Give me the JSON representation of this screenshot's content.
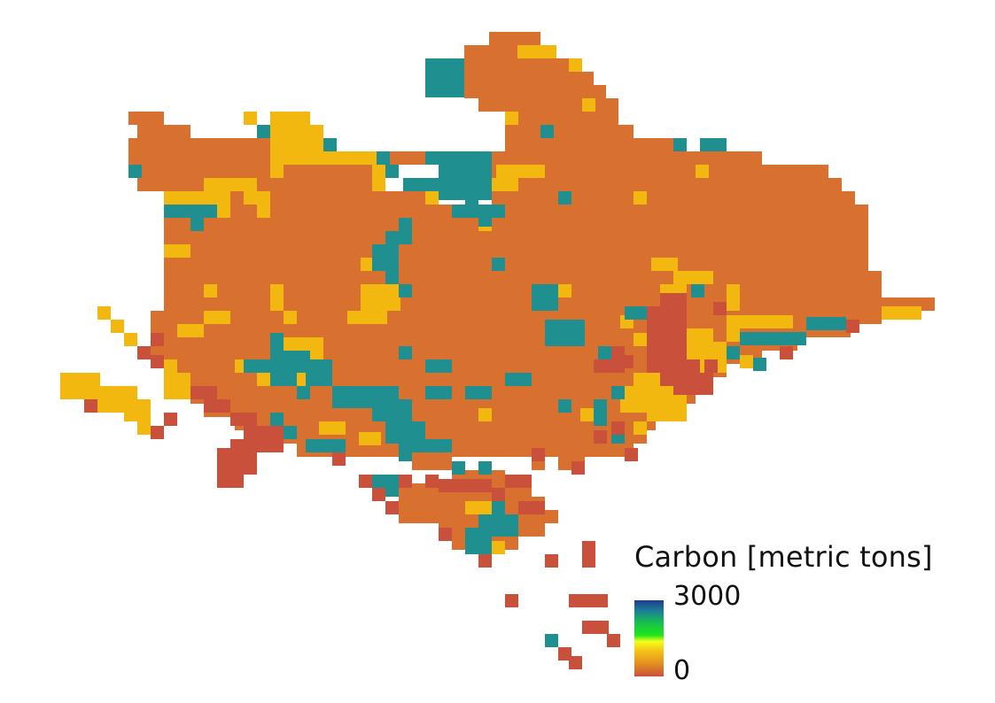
{
  "legend": {
    "title": "Carbon [metric tons]",
    "max_label": "3000",
    "min_label": "0",
    "colormap_stops": [
      "#1f3c8c",
      "#1c7f96",
      "#16c24a",
      "#1fe61a",
      "#f4ff1a",
      "#f5c516",
      "#e5931f",
      "#c9513c"
    ]
  },
  "map": {
    "palette": {
      "orange": "#d87030",
      "yellow": "#f2b80f",
      "teal": "#1f8f8f",
      "red": "#c9513c"
    },
    "cells_orange_rows": [
      [
        36,
        552,
        610
      ],
      [
        51,
        524,
        624
      ],
      [
        66,
        524,
        654
      ],
      [
        81,
        524,
        670
      ],
      [
        96,
        524,
        684
      ],
      [
        111,
        540,
        698
      ],
      [
        126,
        145,
        185
      ],
      [
        126,
        570,
        698
      ],
      [
        141,
        155,
        215
      ],
      [
        141,
        570,
        715
      ],
      [
        156,
        145,
        305
      ],
      [
        156,
        570,
        760
      ],
      [
        171,
        145,
        305
      ],
      [
        171,
        420,
        480
      ],
      [
        171,
        555,
        860
      ],
      [
        186,
        145,
        305
      ],
      [
        186,
        320,
        430
      ],
      [
        186,
        555,
        935
      ],
      [
        201,
        155,
        430
      ],
      [
        201,
        555,
        950
      ],
      [
        216,
        185,
        480
      ],
      [
        216,
        555,
        965
      ],
      [
        231,
        185,
        520
      ],
      [
        231,
        555,
        980
      ],
      [
        246,
        185,
        980
      ],
      [
        261,
        185,
        980
      ],
      [
        276,
        185,
        980
      ],
      [
        291,
        185,
        980
      ],
      [
        306,
        185,
        995
      ],
      [
        321,
        185,
        995
      ],
      [
        336,
        185,
        1055
      ],
      [
        351,
        170,
        995
      ],
      [
        366,
        170,
        960
      ],
      [
        381,
        170,
        900
      ],
      [
        396,
        170,
        860
      ],
      [
        411,
        185,
        820
      ],
      [
        426,
        200,
        800
      ],
      [
        441,
        215,
        785
      ],
      [
        456,
        230,
        770
      ],
      [
        471,
        265,
        740
      ],
      [
        486,
        275,
        730
      ],
      [
        501,
        335,
        715
      ],
      [
        516,
        465,
        510
      ],
      [
        516,
        600,
        615
      ],
      [
        516,
        630,
        660
      ],
      [
        531,
        510,
        570
      ],
      [
        546,
        450,
        600
      ],
      [
        561,
        450,
        615
      ],
      [
        576,
        450,
        630
      ],
      [
        591,
        495,
        615
      ],
      [
        606,
        510,
        585
      ]
    ],
    "cells_yellow": [
      [
        584,
        51,
        44,
        15
      ],
      [
        642,
        66,
        15,
        15
      ],
      [
        657,
        111,
        15,
        15
      ],
      [
        570,
        126,
        15,
        15
      ],
      [
        275,
        126,
        15,
        15
      ],
      [
        305,
        126,
        45,
        15
      ],
      [
        305,
        141,
        60,
        30
      ],
      [
        305,
        171,
        120,
        15
      ],
      [
        305,
        186,
        15,
        15
      ],
      [
        420,
        186,
        15,
        30
      ],
      [
        560,
        186,
        55,
        15
      ],
      [
        555,
        201,
        30,
        15
      ],
      [
        785,
        186,
        15,
        15
      ],
      [
        230,
        201,
        60,
        15
      ],
      [
        185,
        216,
        60,
        15
      ],
      [
        245,
        216,
        15,
        30
      ],
      [
        275,
        216,
        15,
        15
      ],
      [
        290,
        216,
        15,
        30
      ],
      [
        480,
        216,
        15,
        15
      ],
      [
        715,
        216,
        15,
        15
      ],
      [
        540,
        246,
        15,
        15
      ],
      [
        185,
        276,
        30,
        15
      ],
      [
        735,
        291,
        30,
        15
      ],
      [
        760,
        306,
        45,
        15
      ],
      [
        745,
        321,
        30,
        15
      ],
      [
        820,
        321,
        15,
        30
      ],
      [
        407,
        291,
        15,
        15
      ],
      [
        407,
        321,
        45,
        30
      ],
      [
        392,
        351,
        45,
        15
      ],
      [
        305,
        321,
        15,
        30
      ],
      [
        230,
        321,
        15,
        15
      ],
      [
        230,
        351,
        30,
        15
      ],
      [
        320,
        351,
        15,
        15
      ],
      [
        630,
        321,
        15,
        15
      ],
      [
        200,
        366,
        30,
        15
      ],
      [
        995,
        346,
        45,
        15
      ],
      [
        820,
        356,
        75,
        15
      ],
      [
        820,
        371,
        15,
        15
      ],
      [
        320,
        381,
        45,
        25
      ],
      [
        775,
        371,
        30,
        45
      ],
      [
        790,
        386,
        30,
        35
      ],
      [
        835,
        401,
        15,
        15
      ],
      [
        110,
        346,
        15,
        15
      ],
      [
        125,
        361,
        15,
        15
      ],
      [
        140,
        376,
        15,
        15
      ],
      [
        68,
        421,
        45,
        30
      ],
      [
        110,
        436,
        45,
        30
      ],
      [
        140,
        451,
        30,
        25
      ],
      [
        155,
        476,
        15,
        15
      ],
      [
        185,
        406,
        15,
        45
      ],
      [
        200,
        421,
        15,
        15
      ],
      [
        200,
        436,
        15,
        15
      ],
      [
        290,
        421,
        15,
        15
      ],
      [
        335,
        421,
        15,
        15
      ],
      [
        265,
        406,
        15,
        15
      ],
      [
        345,
        406,
        15,
        15
      ],
      [
        715,
        421,
        30,
        30
      ],
      [
        700,
        436,
        75,
        30
      ],
      [
        745,
        461,
        30,
        15
      ],
      [
        730,
        461,
        15,
        15
      ],
      [
        540,
        461,
        15,
        15
      ],
      [
        655,
        461,
        15,
        15
      ],
      [
        715,
        476,
        15,
        15
      ],
      [
        405,
        488,
        25,
        15
      ],
      [
        360,
        476,
        30,
        15
      ],
      [
        525,
        566,
        30,
        15
      ],
      [
        540,
        611,
        30,
        15
      ],
      [
        700,
        356,
        15,
        15
      ],
      [
        715,
        376,
        15,
        15
      ]
    ],
    "cells_teal": [
      [
        480,
        66,
        44,
        44
      ],
      [
        610,
        141,
        15,
        15
      ],
      [
        290,
        141,
        15,
        15
      ],
      [
        365,
        156,
        15,
        15
      ],
      [
        760,
        156,
        15,
        15
      ],
      [
        790,
        156,
        30,
        15
      ],
      [
        145,
        186,
        15,
        15
      ],
      [
        435,
        186,
        15,
        15
      ],
      [
        425,
        171,
        15,
        15
      ],
      [
        480,
        171,
        15,
        15
      ],
      [
        495,
        171,
        60,
        30
      ],
      [
        455,
        201,
        40,
        15
      ],
      [
        495,
        201,
        60,
        25
      ],
      [
        185,
        231,
        60,
        15
      ],
      [
        215,
        246,
        15,
        15
      ],
      [
        510,
        231,
        60,
        15
      ],
      [
        525,
        226,
        15,
        15
      ],
      [
        630,
        216,
        15,
        15
      ],
      [
        540,
        241,
        15,
        15
      ],
      [
        450,
        246,
        15,
        15
      ],
      [
        435,
        261,
        30,
        15
      ],
      [
        420,
        276,
        30,
        30
      ],
      [
        435,
        306,
        15,
        15
      ],
      [
        450,
        321,
        15,
        15
      ],
      [
        555,
        291,
        15,
        15
      ],
      [
        600,
        321,
        30,
        30
      ],
      [
        780,
        321,
        15,
        15
      ],
      [
        705,
        346,
        15,
        15
      ],
      [
        720,
        346,
        15,
        15
      ],
      [
        615,
        361,
        45,
        30
      ],
      [
        910,
        358,
        45,
        15
      ],
      [
        835,
        375,
        75,
        15
      ],
      [
        820,
        391,
        15,
        15
      ],
      [
        850,
        404,
        15,
        15
      ],
      [
        305,
        376,
        15,
        30
      ],
      [
        320,
        396,
        30,
        15
      ],
      [
        275,
        406,
        70,
        15
      ],
      [
        305,
        421,
        30,
        15
      ],
      [
        345,
        406,
        30,
        30
      ],
      [
        450,
        391,
        15,
        15
      ],
      [
        480,
        406,
        30,
        15
      ],
      [
        570,
        421,
        30,
        15
      ],
      [
        480,
        436,
        30,
        15
      ],
      [
        525,
        436,
        30,
        15
      ],
      [
        675,
        391,
        15,
        15
      ],
      [
        690,
        436,
        15,
        15
      ],
      [
        375,
        436,
        75,
        25
      ],
      [
        420,
        451,
        45,
        25
      ],
      [
        435,
        476,
        45,
        25
      ],
      [
        450,
        496,
        60,
        15
      ],
      [
        450,
        506,
        15,
        15
      ],
      [
        335,
        436,
        15,
        15
      ],
      [
        305,
        466,
        15,
        15
      ],
      [
        320,
        481,
        15,
        15
      ],
      [
        345,
        496,
        45,
        15
      ],
      [
        630,
        451,
        15,
        15
      ],
      [
        670,
        451,
        15,
        30
      ],
      [
        690,
        486,
        15,
        15
      ],
      [
        510,
        521,
        15,
        15
      ],
      [
        540,
        521,
        15,
        15
      ],
      [
        420,
        536,
        30,
        25
      ],
      [
        555,
        566,
        15,
        15
      ],
      [
        540,
        581,
        45,
        25
      ],
      [
        525,
        596,
        30,
        30
      ],
      [
        615,
        716,
        15,
        15
      ]
    ],
    "cells_red": [
      [
        745,
        331,
        30,
        30
      ],
      [
        730,
        346,
        15,
        60
      ],
      [
        730,
        361,
        45,
        60
      ],
      [
        745,
        406,
        45,
        30
      ],
      [
        760,
        421,
        45,
        25
      ],
      [
        805,
        341,
        15,
        15
      ],
      [
        955,
        361,
        15,
        15
      ],
      [
        880,
        391,
        15,
        15
      ],
      [
        795,
        406,
        15,
        15
      ],
      [
        690,
        391,
        15,
        15
      ],
      [
        690,
        406,
        15,
        15
      ],
      [
        670,
        406,
        30,
        15
      ],
      [
        700,
        401,
        15,
        15
      ],
      [
        170,
        401,
        15,
        15
      ],
      [
        155,
        391,
        15,
        15
      ],
      [
        170,
        376,
        15,
        15
      ],
      [
        95,
        451,
        15,
        15
      ],
      [
        185,
        466,
        15,
        15
      ],
      [
        170,
        481,
        15,
        15
      ],
      [
        215,
        436,
        30,
        15
      ],
      [
        230,
        451,
        30,
        15
      ],
      [
        260,
        466,
        30,
        15
      ],
      [
        275,
        481,
        45,
        15
      ],
      [
        260,
        496,
        60,
        15
      ],
      [
        245,
        506,
        45,
        15
      ],
      [
        245,
        521,
        45,
        15
      ],
      [
        245,
        536,
        30,
        15
      ],
      [
        375,
        511,
        15,
        15
      ],
      [
        600,
        506,
        15,
        15
      ],
      [
        645,
        521,
        15,
        15
      ],
      [
        705,
        506,
        15,
        15
      ],
      [
        690,
        476,
        15,
        15
      ],
      [
        670,
        486,
        15,
        15
      ],
      [
        405,
        536,
        15,
        15
      ],
      [
        420,
        551,
        15,
        15
      ],
      [
        435,
        566,
        15,
        15
      ],
      [
        450,
        536,
        15,
        15
      ],
      [
        480,
        536,
        15,
        15
      ],
      [
        495,
        541,
        60,
        15
      ],
      [
        570,
        536,
        30,
        15
      ],
      [
        555,
        551,
        15,
        15
      ],
      [
        585,
        566,
        30,
        15
      ],
      [
        495,
        596,
        15,
        15
      ],
      [
        540,
        626,
        15,
        15
      ],
      [
        615,
        626,
        15,
        15
      ],
      [
        657,
        611,
        15,
        30
      ],
      [
        570,
        671,
        15,
        15
      ],
      [
        642,
        671,
        44,
        15
      ],
      [
        657,
        701,
        30,
        15
      ],
      [
        685,
        716,
        15,
        15
      ],
      [
        630,
        731,
        15,
        15
      ],
      [
        642,
        741,
        15,
        15
      ]
    ]
  }
}
